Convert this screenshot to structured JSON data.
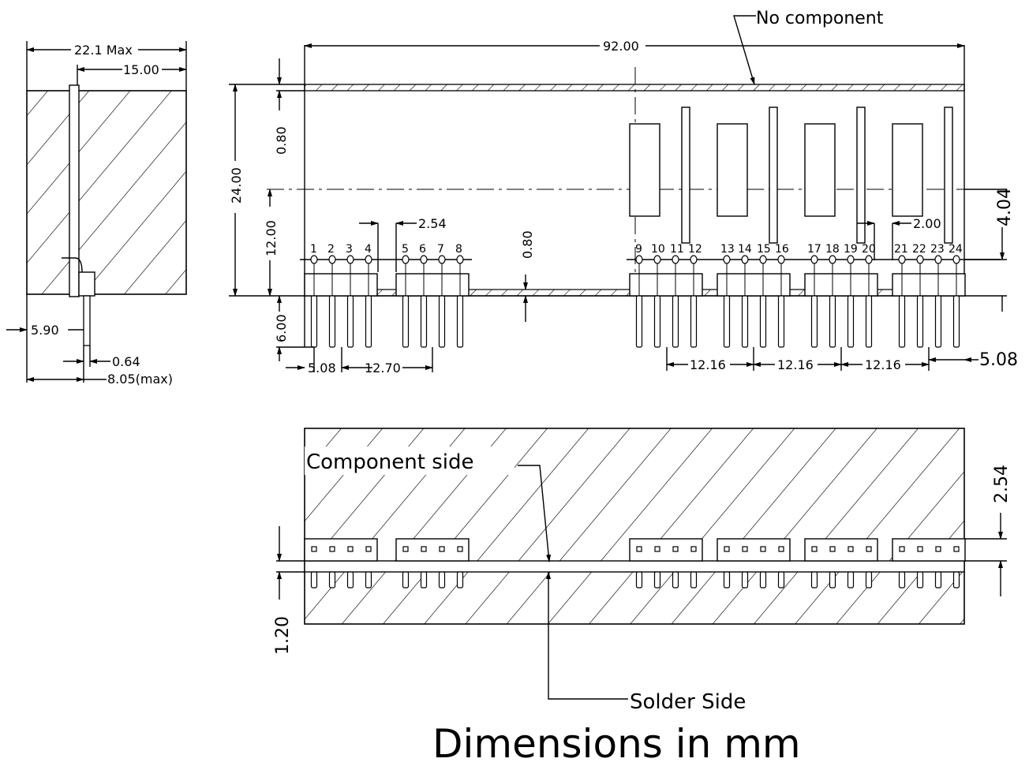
{
  "notes": {
    "no_component": "No component",
    "component_side": "Component side",
    "solder_side": "Solder Side",
    "footer": "Dimensions in mm"
  },
  "side_view": {
    "max_width": "22.1 Max",
    "pin_offset": "15.00",
    "left_offset": "5.90",
    "pin_diameter": "0.64",
    "max_depth": "8.05(max)"
  },
  "front_view": {
    "total_length": "92.00",
    "height": "24.00",
    "top_strip": "0.80",
    "center_height": "12.00",
    "pin_length": "6.00",
    "pitch": "2.54",
    "board_thickness": "0.80",
    "right_offset": "4.04",
    "pin_gap": "2.00",
    "left_start": "5.08",
    "group_spacing_left": "12.70",
    "group_spacing_1": "12.16",
    "group_spacing_2": "12.16",
    "group_spacing_3": "12.16",
    "right_end": "5.08"
  },
  "bottom_view": {
    "header_offset": "2.54",
    "pin_protrusion": "1.20"
  },
  "pin_numbers": [
    "1",
    "2",
    "3",
    "4",
    "5",
    "6",
    "7",
    "8",
    "9",
    "10",
    "11",
    "12",
    "13",
    "14",
    "15",
    "16",
    "17",
    "18",
    "19",
    "20",
    "21",
    "22",
    "23",
    "24"
  ]
}
